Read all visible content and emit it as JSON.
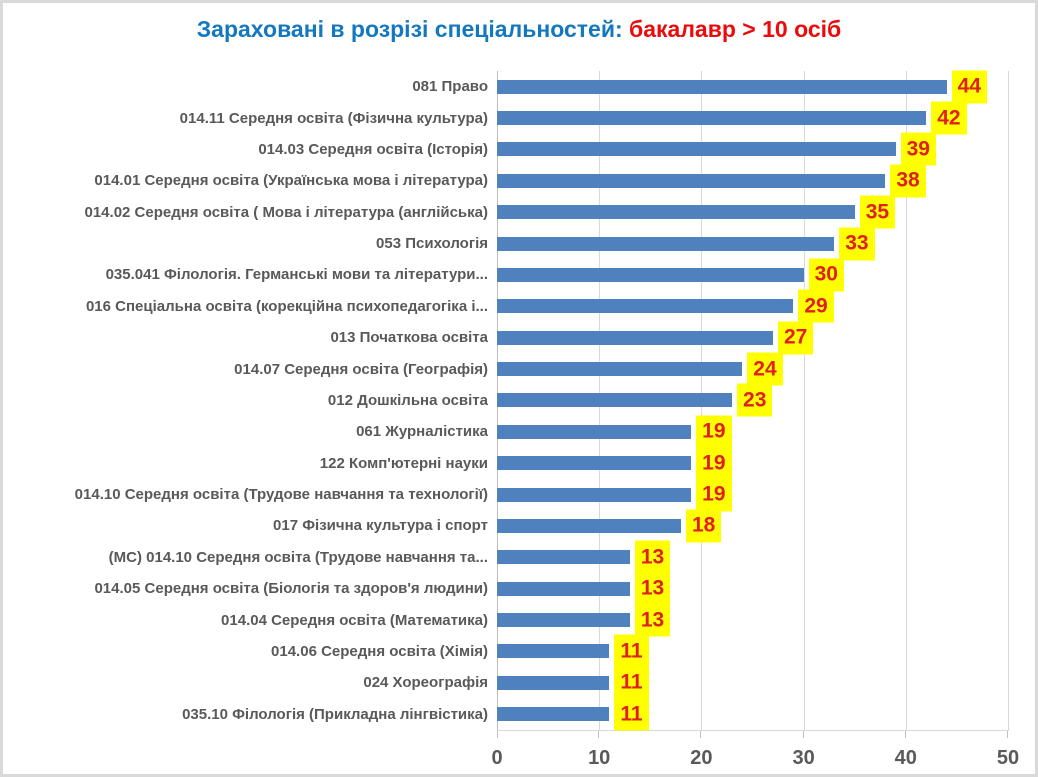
{
  "title": {
    "main": "Зараховані в розрізі спеціальностей: ",
    "highlight": "бакалавр > 10 осіб"
  },
  "colors": {
    "title_main": "#1478BE",
    "title_highlight": "#EA0B0B",
    "bar": "#4E81BD",
    "value_bg": "#FFFF00",
    "value_text": "#E02020",
    "label_text": "#595959",
    "axis_text": "#595959",
    "gridline": "#D9D9D9",
    "axis_line": "#BFBFBF",
    "frame_border": "#D9D9D9"
  },
  "chart_data": {
    "type": "bar",
    "orientation": "horizontal",
    "title": "Зараховані в розрізі спеціальностей: бакалавр > 10 осіб",
    "categories": [
      "081 Право",
      "014.11 Середня освіта (Фізична культура)",
      "014.03 Середня освіта (Історія)",
      "014.01 Середня освіта (Українська мова і література)",
      "014.02 Середня освіта ( Мова і література (англійська)",
      "053 Психологія",
      "035.041 Філологія. Германські мови та літератури...",
      "016 Спеціальна освіта (корекційна психопедагогіка і...",
      "013 Початкова освіта",
      "014.07 Середня освіта (Географія)",
      "012 Дошкільна освіта",
      "061 Журналістика",
      "122 Комп'ютерні науки",
      "014.10 Середня освіта (Трудове навчання та технології)",
      "017 Фізична культура і спорт",
      "(МС) 014.10 Середня освіта (Трудове навчання та...",
      "014.05 Середня освіта (Біологія та здоров'я людини)",
      "014.04 Середня освіта (Математика)",
      "014.06 Середня освіта (Хімія)",
      "024 Хореографія",
      "035.10 Філологія (Прикладна лінгвістика)"
    ],
    "values": [
      44,
      42,
      39,
      38,
      35,
      33,
      30,
      29,
      27,
      24,
      23,
      19,
      19,
      19,
      18,
      13,
      13,
      13,
      11,
      11,
      11
    ],
    "xlim": [
      0,
      50
    ],
    "x_ticks": [
      0,
      10,
      20,
      30,
      40,
      50
    ],
    "grid": true,
    "legend": false,
    "value_labels": true
  }
}
